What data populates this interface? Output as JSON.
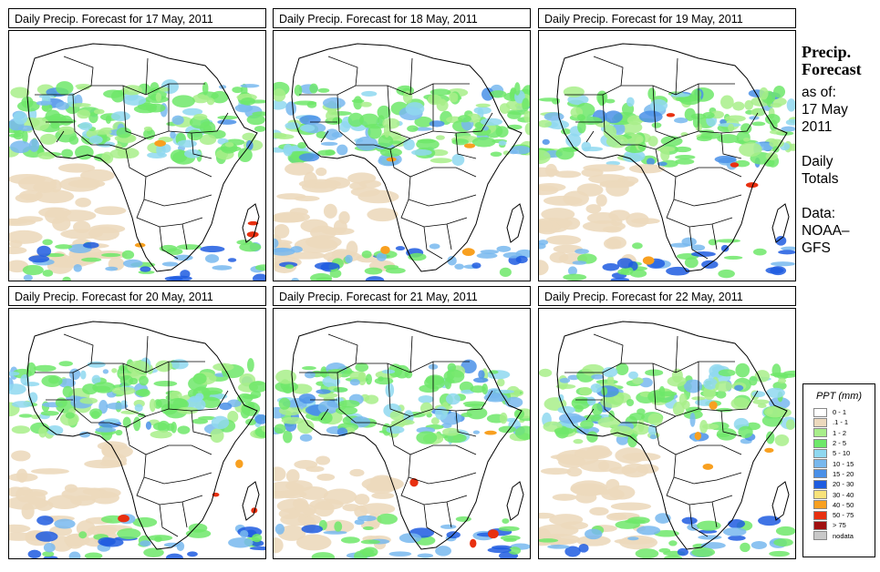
{
  "panels": [
    {
      "title": "Daily Precip. Forecast for  17 May, 2011"
    },
    {
      "title": "Daily Precip. Forecast for  18 May, 2011"
    },
    {
      "title": "Daily Precip. Forecast for  19 May, 2011"
    },
    {
      "title": "Daily Precip. Forecast for  20 May, 2011"
    },
    {
      "title": "Daily Precip. Forecast for  21 May, 2011"
    },
    {
      "title": "Daily Precip. Forecast for  22 May, 2011"
    }
  ],
  "side": {
    "heading_line1": "Precip.",
    "heading_line2": "Forecast",
    "asof_label": "as of:",
    "asof_date_line1": "17 May",
    "asof_date_line2": "2011",
    "totals_line1": "Daily",
    "totals_line2": "Totals",
    "data_line1": "Data:",
    "data_line2": "NOAA–",
    "data_line3": "GFS"
  },
  "legend": {
    "title": "PPT (mm)",
    "items": [
      {
        "label": "0 - 1",
        "color": "#ffffff"
      },
      {
        "label": ".1 - 1",
        "color": "#ecd9bd"
      },
      {
        "label": "1 - 2",
        "color": "#a8ee8a"
      },
      {
        "label": "2 - 5",
        "color": "#6ee86a"
      },
      {
        "label": "5 - 10",
        "color": "#8fd8f0"
      },
      {
        "label": "10 - 15",
        "color": "#78b8ee"
      },
      {
        "label": "15 - 20",
        "color": "#4a90e8"
      },
      {
        "label": "20 - 30",
        "color": "#1e5ce0"
      },
      {
        "label": "30 - 40",
        "color": "#f8e27a"
      },
      {
        "label": "40 - 50",
        "color": "#f8a020"
      },
      {
        "label": "50 - 75",
        "color": "#e83010"
      },
      {
        "label": "> 75",
        "color": "#a01010"
      },
      {
        "label": "nodata",
        "color": "#c8c8c8"
      }
    ]
  }
}
